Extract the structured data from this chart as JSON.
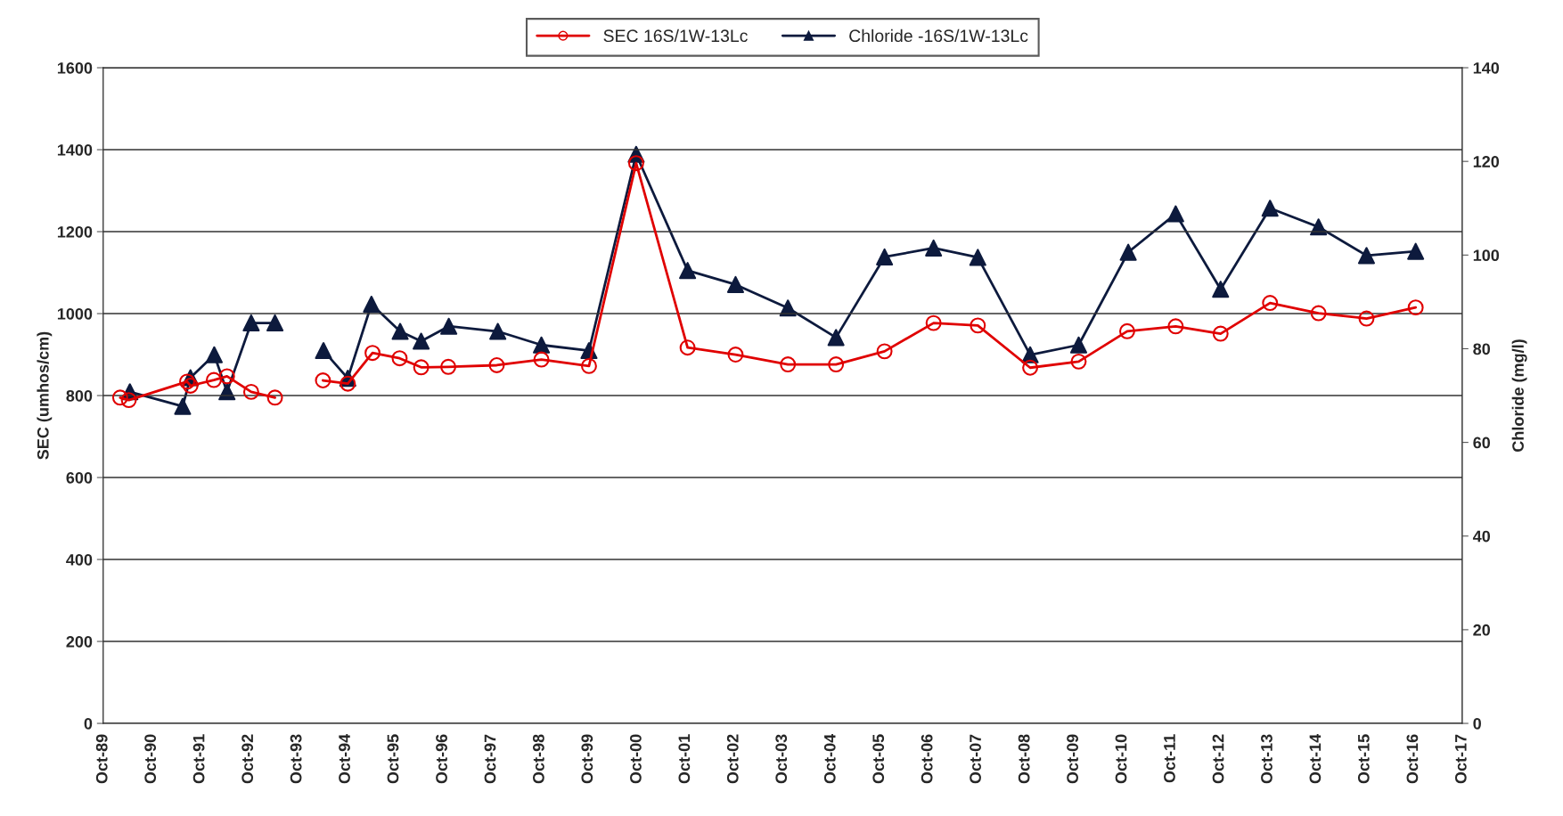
{
  "chart_data": {
    "type": "line",
    "ylabel": "SEC (umhos/cm)",
    "y2label": "Chloride (mg/l)",
    "xlim": [
      "1989-10-01",
      "2017-10-01"
    ],
    "xticks": [
      {
        "value": "1989-10-01",
        "label": "Oct-89"
      },
      {
        "value": "1990-10-01",
        "label": "Oct-90"
      },
      {
        "value": "1991-10-01",
        "label": "Oct-91"
      },
      {
        "value": "1992-10-01",
        "label": "Oct-92"
      },
      {
        "value": "1993-10-01",
        "label": "Oct-93"
      },
      {
        "value": "1994-10-01",
        "label": "Oct-94"
      },
      {
        "value": "1995-10-01",
        "label": "Oct-95"
      },
      {
        "value": "1996-10-01",
        "label": "Oct-96"
      },
      {
        "value": "1997-10-01",
        "label": "Oct-97"
      },
      {
        "value": "1998-10-01",
        "label": "Oct-98"
      },
      {
        "value": "1999-10-01",
        "label": "Oct-99"
      },
      {
        "value": "2000-10-01",
        "label": "Oct-00"
      },
      {
        "value": "2001-10-01",
        "label": "Oct-01"
      },
      {
        "value": "2002-10-01",
        "label": "Oct-02"
      },
      {
        "value": "2003-10-01",
        "label": "Oct-03"
      },
      {
        "value": "2004-10-01",
        "label": "Oct-04"
      },
      {
        "value": "2005-10-01",
        "label": "Oct-05"
      },
      {
        "value": "2006-10-01",
        "label": "Oct-06"
      },
      {
        "value": "2007-10-01",
        "label": "Oct-07"
      },
      {
        "value": "2008-10-01",
        "label": "Oct-08"
      },
      {
        "value": "2009-10-01",
        "label": "Oct-09"
      },
      {
        "value": "2010-10-01",
        "label": "Oct-10"
      },
      {
        "value": "2011-10-01",
        "label": "Oct-11"
      },
      {
        "value": "2012-10-01",
        "label": "Oct-12"
      },
      {
        "value": "2013-10-01",
        "label": "Oct-13"
      },
      {
        "value": "2014-10-01",
        "label": "Oct-14"
      },
      {
        "value": "2015-10-01",
        "label": "Oct-15"
      },
      {
        "value": "2016-10-01",
        "label": "Oct-16"
      },
      {
        "value": "2017-10-01",
        "label": "Oct-17"
      }
    ],
    "ylim": [
      0,
      1600
    ],
    "yticks": [
      0,
      200,
      400,
      600,
      800,
      1000,
      1200,
      1400,
      1600
    ],
    "y2lim": [
      0,
      140
    ],
    "y2ticks": [
      0,
      20,
      40,
      60,
      80,
      100,
      120,
      140
    ],
    "grid": "y",
    "legend": "top",
    "series": [
      {
        "name": "SEC 16S/1W-13Lc",
        "color": "#e00000",
        "marker": "circle",
        "line_style": "solid",
        "x": [
          "1990-02-06",
          "1990-04-12",
          "1991-06-25",
          "1991-07-20",
          "1992-01-12",
          "1992-04-20",
          "1992-10-19",
          "1993-04-16",
          "1993-10-20",
          "1994-04-12",
          "1994-10-16",
          "1995-04-20",
          "1995-11-10",
          "1996-04-20",
          "1996-11-10",
          "1997-11-10",
          "1998-10-12",
          "1999-10-05",
          "2000-09-24",
          "2001-10-16",
          "2002-10-12",
          "2003-11-10",
          "2004-11-06",
          "2005-11-06",
          "2006-11-10",
          "2007-10-09",
          "2008-11-06",
          "2009-11-06",
          "2010-11-06",
          "2011-11-06",
          "2012-10-09",
          "2013-10-16",
          "2014-10-16",
          "2015-10-12",
          "2016-10-16"
        ],
        "values": [
          795,
          789,
          834,
          824,
          838,
          847,
          809,
          795,
          null,
          837,
          829,
          904,
          891,
          869,
          870,
          874,
          888,
          872,
          1367,
          917,
          900,
          876,
          876,
          908,
          977,
          971,
          868,
          883,
          957,
          969,
          951,
          1026,
          1001,
          988,
          1015
        ]
      },
      {
        "name": "Chloride -16S/1W-13Lc",
        "color": "#0d1a3d",
        "marker": "triangle",
        "line_style": "solid",
        "axis": "y2",
        "x": [
          "1990-04-20",
          "1991-05-22",
          "1991-07-20",
          "1992-01-15",
          "1992-04-20",
          "1992-10-19",
          "1993-04-16",
          "1993-10-20",
          "1994-04-16",
          "1994-10-16",
          "1995-04-12",
          "1995-11-14",
          "1996-04-20",
          "1996-11-14",
          "1997-11-18",
          "1998-10-12",
          "1999-10-05",
          "2000-09-24",
          "2001-10-16",
          "2002-10-12",
          "2003-11-10",
          "2004-11-06",
          "2005-11-06",
          "2006-11-10",
          "2007-10-09",
          "2008-11-06",
          "2009-11-06",
          "2010-11-14",
          "2011-11-06",
          "2012-10-09",
          "2013-10-16",
          "2014-10-16",
          "2015-10-12",
          "2016-10-16"
        ],
        "values": [
          70.8,
          67.7,
          73.8,
          78.7,
          70.8,
          85.5,
          85.5,
          null,
          79.6,
          73.7,
          89.5,
          83.7,
          81.6,
          84.8,
          83.7,
          80.8,
          79.6,
          121.5,
          96.7,
          93.7,
          88.7,
          82.4,
          99.6,
          101.5,
          99.5,
          78.7,
          80.8,
          100.6,
          108.8,
          92.7,
          110.0,
          106.0,
          99.9,
          100.8
        ]
      }
    ]
  }
}
